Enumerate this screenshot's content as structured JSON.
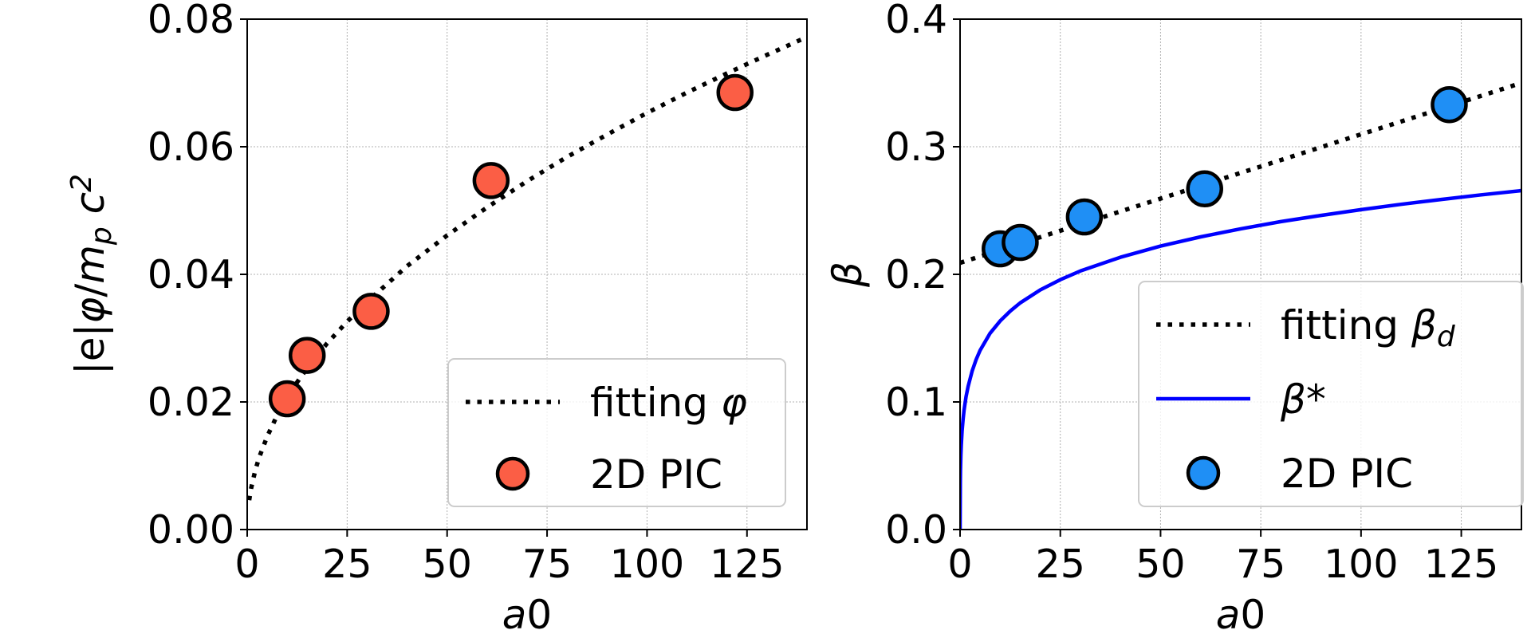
{
  "chart_data": [
    {
      "type": "scatter",
      "xlabel": "a0",
      "ylabel": "|e|φ/m_p c^2",
      "xlim": [
        0,
        140
      ],
      "ylim": [
        0,
        0.08
      ],
      "xticks": [
        "0",
        "25",
        "50",
        "75",
        "100",
        "125"
      ],
      "yticks": [
        "0.00",
        "0.02",
        "0.04",
        "0.06",
        "0.08"
      ],
      "grid": true,
      "legend_position": "lower-right",
      "series": [
        {
          "name": "fitting φ",
          "kind": "dotted-line",
          "color": "#000000",
          "x": [
            0.5,
            1,
            2,
            3,
            5,
            7.5,
            10,
            12.5,
            15,
            20,
            25,
            30,
            40,
            50,
            60,
            70,
            80,
            90,
            100,
            110,
            120,
            130,
            140
          ],
          "y": [
            0.0046,
            0.0065,
            0.0092,
            0.0113,
            0.0146,
            0.0179,
            0.0206,
            0.0231,
            0.0253,
            0.0292,
            0.0326,
            0.0357,
            0.0413,
            0.0461,
            0.0505,
            0.0546,
            0.0584,
            0.0619,
            0.0653,
            0.0685,
            0.0715,
            0.0744,
            0.0772
          ]
        },
        {
          "name": "2D PIC",
          "kind": "marker",
          "color": "#fb5e45",
          "x": [
            10,
            15,
            31,
            61,
            122
          ],
          "y": [
            0.0205,
            0.0273,
            0.0342,
            0.0547,
            0.0685
          ]
        }
      ]
    },
    {
      "type": "scatter",
      "xlabel": "a0",
      "ylabel": "β",
      "xlim": [
        0,
        140
      ],
      "ylim": [
        0,
        0.4
      ],
      "xticks": [
        "0",
        "25",
        "50",
        "75",
        "100",
        "125"
      ],
      "yticks": [
        "0.0",
        "0.1",
        "0.2",
        "0.3",
        "0.4"
      ],
      "grid": true,
      "legend_position": "lower-right",
      "series": [
        {
          "name": "fitting β_d",
          "kind": "dotted-line",
          "color": "#000000",
          "x": [
            0,
            140
          ],
          "y": [
            0.209,
            0.35
          ]
        },
        {
          "name": "β*",
          "kind": "solid-line",
          "color": "#0000ff",
          "x": [
            0,
            0.05,
            0.1,
            0.2,
            0.3,
            0.5,
            0.75,
            1,
            1.5,
            2,
            3,
            4,
            5,
            7.5,
            10,
            12.5,
            15,
            20,
            25,
            30,
            40,
            50,
            60,
            70,
            80,
            90,
            100,
            110,
            120,
            130,
            140
          ],
          "y": [
            0,
            0.0365,
            0.0462,
            0.0584,
            0.0662,
            0.0771,
            0.0865,
            0.0935,
            0.1041,
            0.1121,
            0.1241,
            0.1331,
            0.1404,
            0.1539,
            0.1635,
            0.1712,
            0.1776,
            0.1878,
            0.1958,
            0.2026,
            0.2134,
            0.2221,
            0.2294,
            0.2357,
            0.2413,
            0.2462,
            0.2507,
            0.2549,
            0.2587,
            0.2623,
            0.2656
          ]
        },
        {
          "name": "2D PIC",
          "kind": "marker",
          "color": "#1f8ff5",
          "x": [
            10,
            15,
            31,
            61,
            122
          ],
          "y": [
            0.22,
            0.225,
            0.245,
            0.267,
            0.333
          ]
        }
      ]
    }
  ]
}
